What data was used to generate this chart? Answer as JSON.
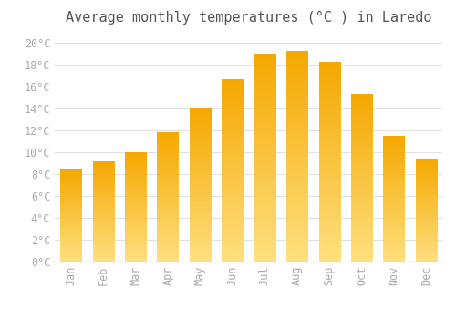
{
  "title": "Average monthly temperatures (°C ) in Laredo",
  "months": [
    "Jan",
    "Feb",
    "Mar",
    "Apr",
    "May",
    "Jun",
    "Jul",
    "Aug",
    "Sep",
    "Oct",
    "Nov",
    "Dec"
  ],
  "values": [
    8.5,
    9.1,
    10.0,
    11.8,
    14.0,
    16.6,
    19.0,
    19.2,
    18.2,
    15.3,
    11.5,
    9.4
  ],
  "bar_color_top": "#F5A800",
  "bar_color_bottom": "#FFE080",
  "ylim": [
    0,
    21
  ],
  "ytick_step": 2,
  "background_color": "#FFFFFF",
  "grid_color": "#E0E0E0",
  "title_fontsize": 11,
  "tick_fontsize": 8.5,
  "bar_width": 0.65
}
